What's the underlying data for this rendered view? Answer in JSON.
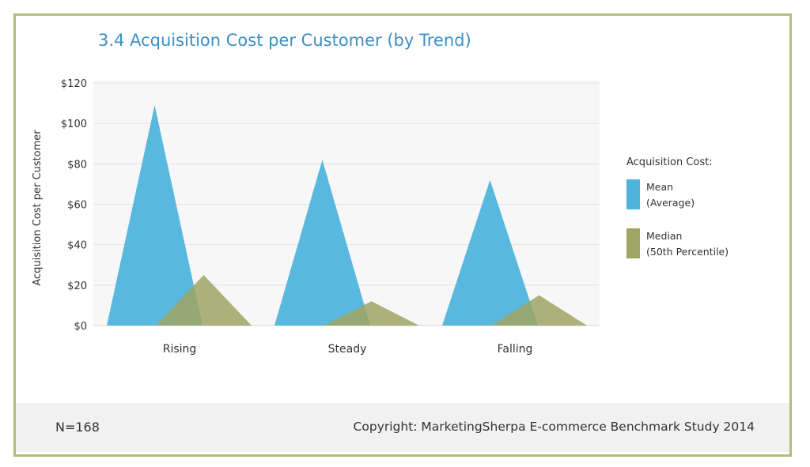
{
  "footer": {
    "n_label": "N=168",
    "copyright": "Copyright: MarketingSherpa E-commerce Benchmark Study 2014"
  },
  "colors": {
    "mean": "#4fb4dc",
    "median": "#9ea563",
    "frame": "#b4bc78",
    "title": "#3d8fc4"
  },
  "chart_data": {
    "type": "area",
    "title": "3.4 Acquisition Cost per Customer (by Trend)",
    "xlabel": "",
    "ylabel": "Acquisition Cost per Customer",
    "categories": [
      "Rising",
      "Steady",
      "Falling"
    ],
    "ylim": [
      0,
      120
    ],
    "yticks": [
      "$0",
      "$20",
      "$40",
      "$60",
      "$80",
      "$100",
      "$120"
    ],
    "grid": true,
    "legend_title": "Acquisition Cost:",
    "legend_position": "right",
    "series": [
      {
        "name": "Mean",
        "name_line2": "(Average)",
        "values": [
          109,
          82,
          72
        ]
      },
      {
        "name": "Median",
        "name_line2": "(50th Percentile)",
        "values": [
          25,
          12,
          15
        ]
      }
    ]
  }
}
